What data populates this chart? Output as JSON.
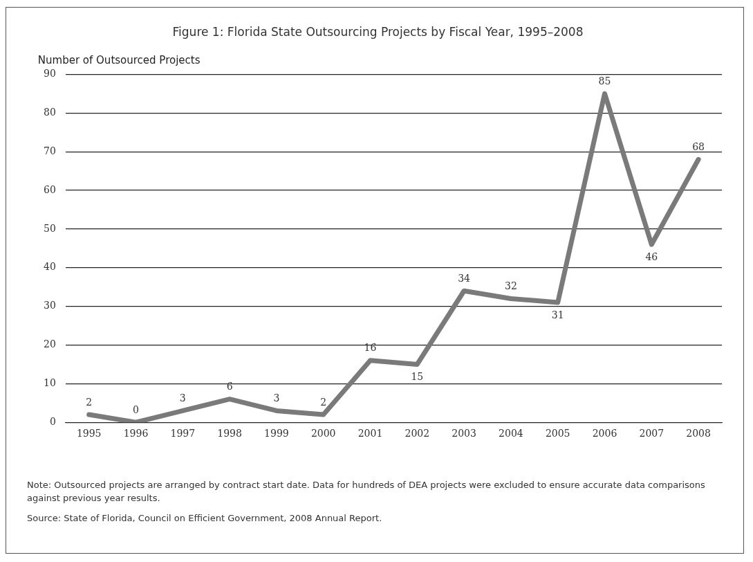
{
  "chart_data": {
    "type": "line",
    "title": "Figure 1: Florida State Outsourcing Projects by Fiscal Year, 1995–2008",
    "ylabel": "Number of Outsourced Projects",
    "categories": [
      "1995",
      "1996",
      "1997",
      "1998",
      "1999",
      "2000",
      "2001",
      "2002",
      "2003",
      "2004",
      "2005",
      "2006",
      "2007",
      "2008"
    ],
    "series": [
      {
        "color": "#7a7a7a",
        "values": [
          2,
          0,
          3,
          6,
          3,
          2,
          16,
          15,
          34,
          32,
          31,
          85,
          46,
          68
        ]
      }
    ],
    "ylim": [
      0,
      90
    ],
    "yticks": [
      0,
      10,
      20,
      30,
      40,
      50,
      60,
      70,
      80,
      90
    ],
    "grid": "y",
    "legend": false,
    "marker": "none",
    "line_style": "solid",
    "data_labels": true,
    "annotations": [
      "Note: Outsourced projects are arranged by contract start date. Data for hundreds of DEA projects were excluded to ensure accurate data comparisons against previous year results.",
      "Source: State of Florida, Council on Efficient Government, 2008 Annual Report."
    ]
  }
}
